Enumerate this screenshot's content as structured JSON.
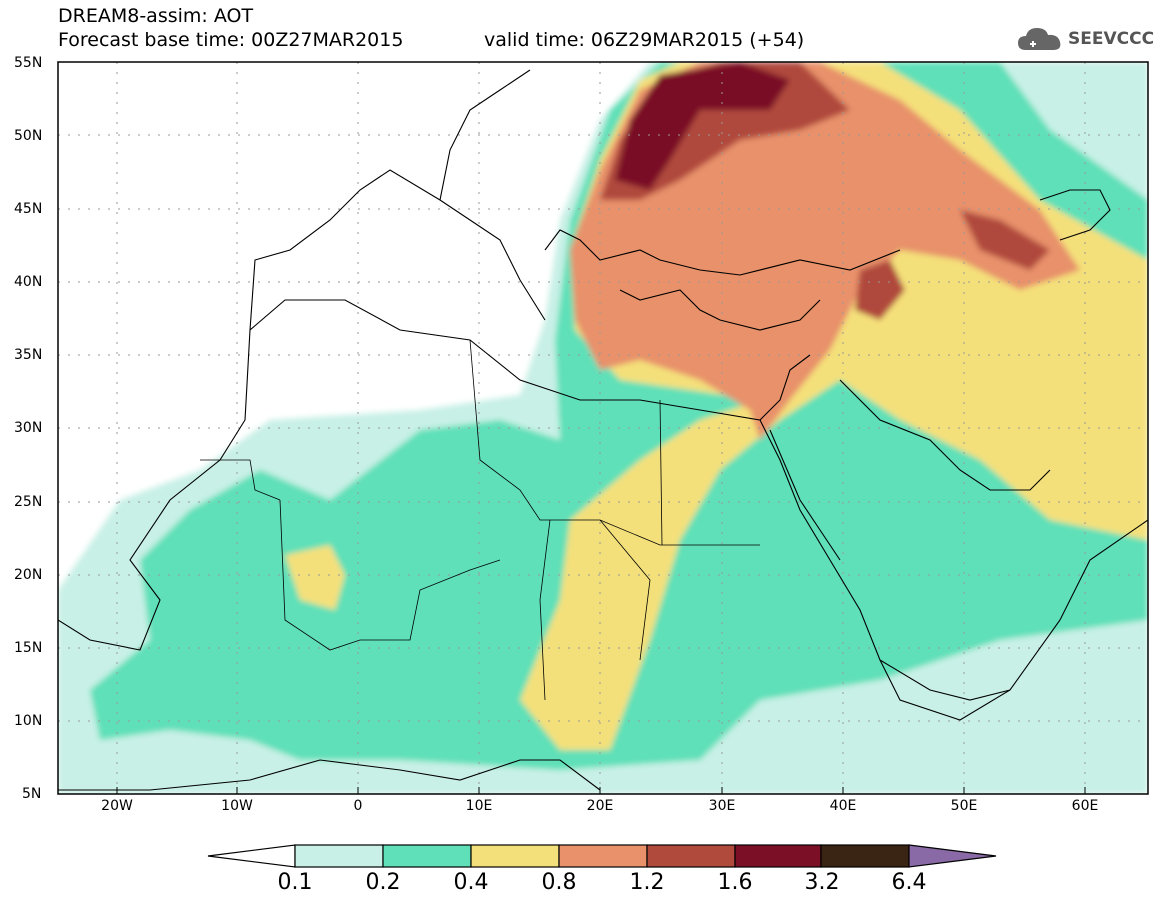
{
  "header": {
    "line1": "DREAM8-assim: AOT",
    "line2": "Forecast base time: 00Z27MAR2015",
    "line3": "valid time: 06Z29MAR2015 (+54)",
    "logo_text": "SEEVCCC"
  },
  "axes": {
    "lat_labels": [
      "55N",
      "50N",
      "45N",
      "40N",
      "35N",
      "30N",
      "25N",
      "20N",
      "15N",
      "10N",
      "5N"
    ],
    "lon_labels": [
      "20W",
      "10W",
      "0",
      "10E",
      "20E",
      "30E",
      "40E",
      "50E",
      "60E"
    ]
  },
  "colorbar": {
    "labels": [
      "0.1",
      "0.2",
      "0.4",
      "0.8",
      "1.2",
      "1.6",
      "3.2",
      "6.4"
    ],
    "colors": [
      "#ffffff",
      "#c8f0e6",
      "#5fe0b8",
      "#f4e07a",
      "#e8916a",
      "#b04a3c",
      "#7a0f26",
      "#3a2414",
      "#8a6aa6"
    ]
  }
}
